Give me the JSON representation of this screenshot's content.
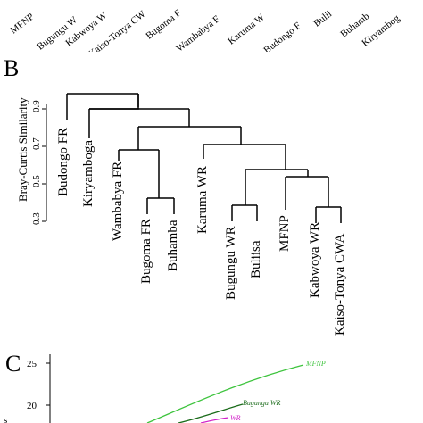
{
  "panel_a": {
    "labels": [
      "MFNP",
      "Bugungu W",
      "Kabwoya W",
      "Kaiso-Tonya CW",
      "Bugoma F",
      "Wambabya F",
      "Karuma W",
      "Budongo F",
      "Bulii",
      "Buhamb",
      "Kiryambog"
    ]
  },
  "panel_b": {
    "letter": "B",
    "y_axis_label": "Bray-Curtis Similarity",
    "y_ticks": [
      "0.3",
      "0.5",
      "0.7",
      "0.9"
    ],
    "leaves": [
      "Budongo FR",
      "Kiryamboga",
      "Wambabya FR",
      "Bugoma FR",
      "Buhamba",
      "Karuma WR",
      "Bugungu WR",
      "Buliisa",
      "MFNP",
      "Kabwoya WR",
      "Kaiso-Tonya CWA"
    ]
  },
  "panel_c": {
    "letter": "C",
    "y_ticks": [
      "25",
      "20"
    ],
    "axis_fragment": "s",
    "series": [
      {
        "name": "MFNP",
        "color": "#3ec43e"
      },
      {
        "name": "Bugungu WR",
        "color": "#1a6b1a"
      },
      {
        "name": "WR",
        "color": "#d01ec8"
      }
    ]
  }
}
